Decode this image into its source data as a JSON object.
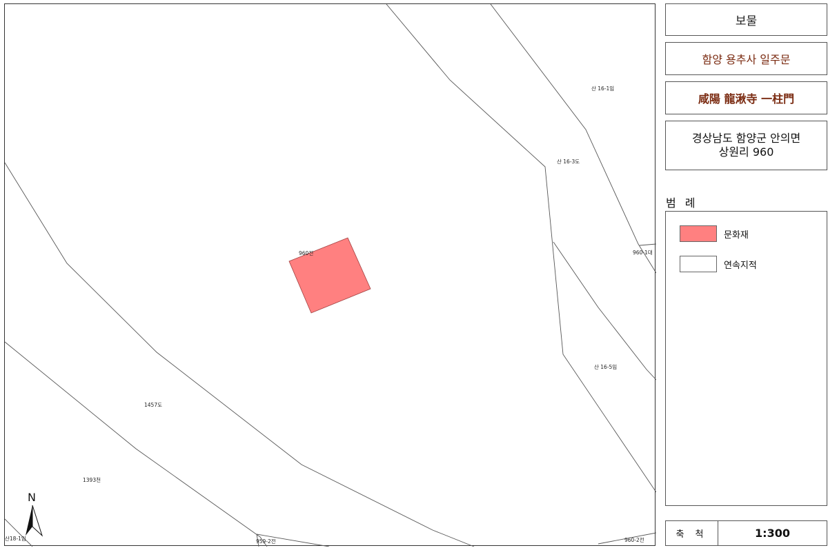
{
  "info": {
    "type": "보물",
    "name_kr": "함양 용추사 일주문",
    "name_hanja": "咸陽 龍湫寺 一柱門",
    "address_line1": "경상남도 함양군 안의면",
    "address_line2": "상원리 960"
  },
  "legend": {
    "title": "범 례",
    "items": [
      {
        "label": "문화재",
        "color": "#ff8080"
      },
      {
        "label": "연속지적",
        "color": "#ffffff"
      }
    ]
  },
  "scale": {
    "label": "축 척",
    "value": "1:300"
  },
  "map": {
    "north_label": "N",
    "heritage_color": "#ff8080",
    "parcel_labels": [
      "960전",
      "산 16-1임",
      "산 16-3도",
      "960-1대",
      "산 16-5임",
      "1457도",
      "1393천",
      "산18-1임",
      "959-2전",
      "960-2전"
    ]
  }
}
